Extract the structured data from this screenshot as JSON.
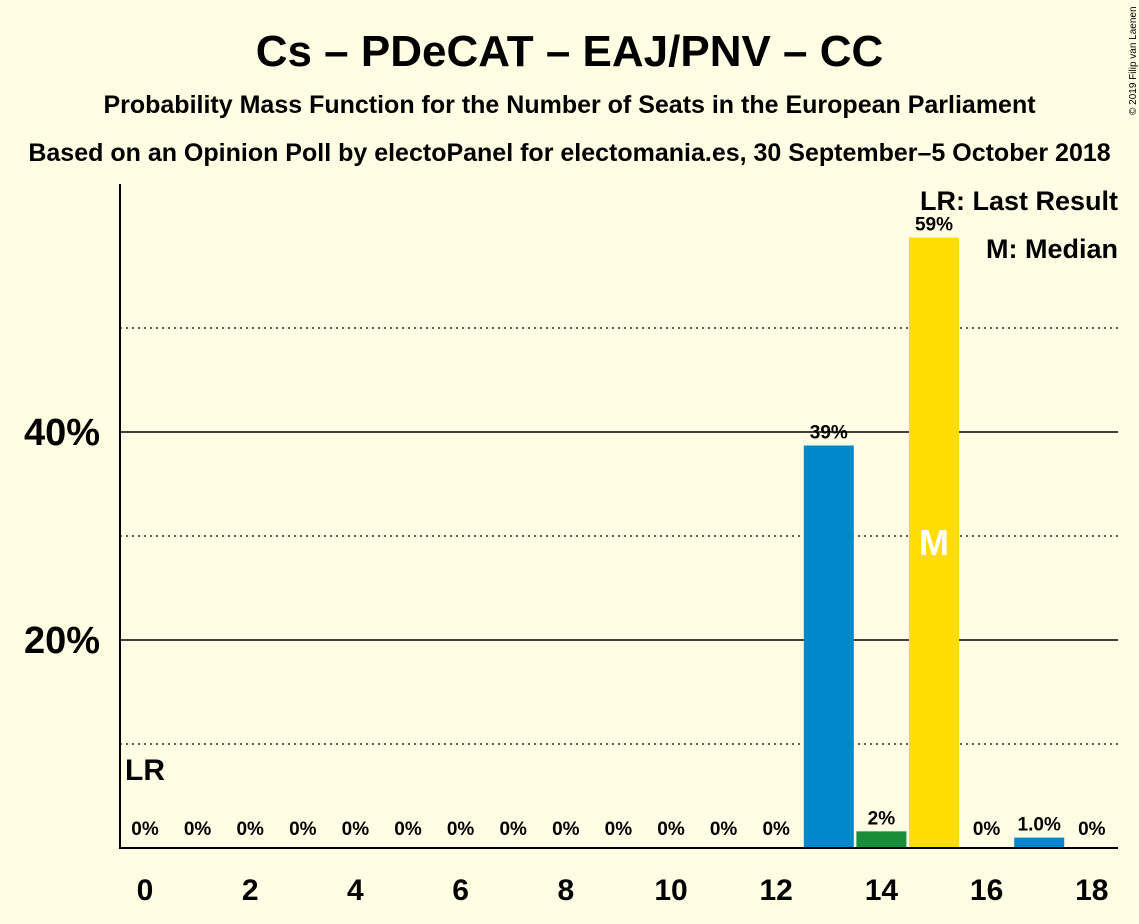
{
  "chart_data": {
    "type": "bar",
    "title": "Cs – PDeCAT – EAJ/PNV – CC",
    "subtitle": "Probability Mass Function for the Number of Seats in the European Parliament",
    "subtitle2": "Based on an Opinion Poll by electoPanel for electomania.es, 30 September–5 October 2018",
    "copyright": "© 2019 Filip van Laenen",
    "x": [
      0,
      1,
      2,
      3,
      4,
      5,
      6,
      7,
      8,
      9,
      10,
      11,
      12,
      13,
      14,
      15,
      16,
      17,
      18
    ],
    "values": [
      0,
      0,
      0,
      0,
      0,
      0,
      0,
      0,
      0,
      0,
      0,
      0,
      0,
      38.7,
      1.6,
      58.7,
      0,
      1.0,
      0
    ],
    "value_labels": [
      "0%",
      "0%",
      "0%",
      "0%",
      "0%",
      "0%",
      "0%",
      "0%",
      "0%",
      "0%",
      "0%",
      "0%",
      "0%",
      "39%",
      "2%",
      "59%",
      "0%",
      "1.0%",
      "0%"
    ],
    "bar_colors": [
      "#0087CC",
      "#0087CC",
      "#0087CC",
      "#0087CC",
      "#0087CC",
      "#0087CC",
      "#0087CC",
      "#0087CC",
      "#0087CC",
      "#0087CC",
      "#0087CC",
      "#0087CC",
      "#0087CC",
      "#0087CC",
      "#1B8C3A",
      "#FFDD00",
      "#0087CC",
      "#0087CC",
      "#0087CC"
    ],
    "xticks": [
      0,
      2,
      4,
      6,
      8,
      10,
      12,
      14,
      16,
      18
    ],
    "yticks": [
      {
        "value": 20,
        "label": "20%"
      },
      {
        "value": 40,
        "label": "40%"
      }
    ],
    "minor_gridlines": [
      10,
      30,
      50
    ],
    "ylim": [
      0,
      64
    ],
    "last_result": {
      "seats": 0,
      "label": "LR"
    },
    "median": {
      "seats": 15,
      "label": "M"
    },
    "legend": [
      "LR: Last Result",
      "M: Median"
    ],
    "legend_position": "top-right"
  }
}
